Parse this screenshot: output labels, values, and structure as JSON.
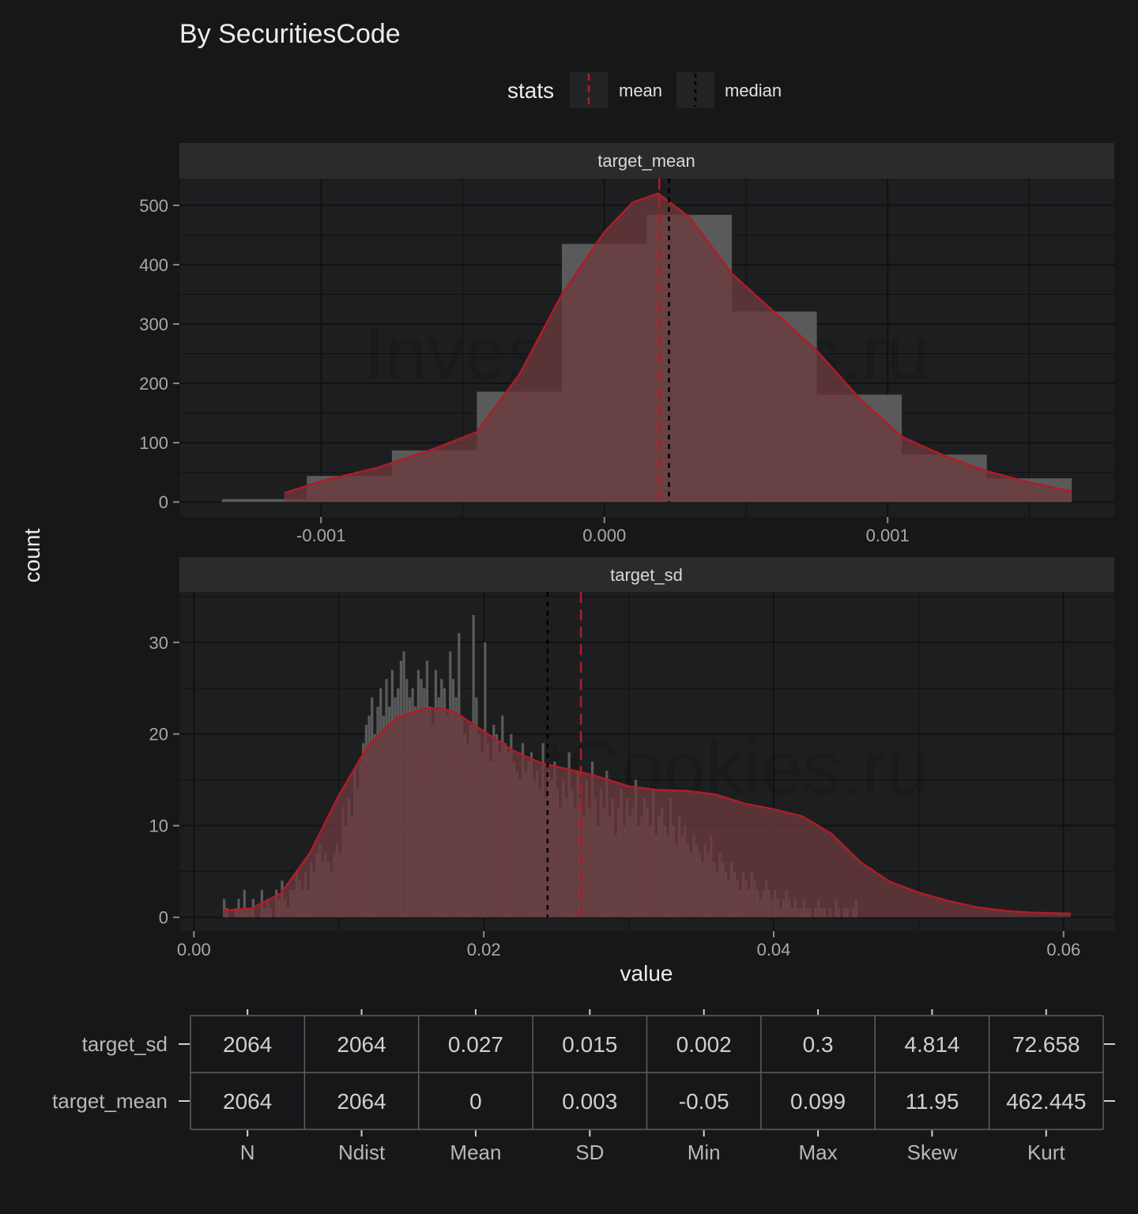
{
  "title": "By SecuritiesCode",
  "watermark": "InvestCookies.ru",
  "legend": {
    "title": "stats",
    "items": [
      {
        "label": "mean",
        "color": "#b01c27"
      },
      {
        "label": "median",
        "color": "#000000"
      }
    ]
  },
  "colors": {
    "background": "#161719",
    "panel": "#1d1e20",
    "strip": "#2a2b2d",
    "histogram_bar": "#5a5a5a",
    "density_fill": "#6b3a3e",
    "density_line": "#b01c27",
    "median_line": "#000000"
  },
  "chart_data": [
    {
      "type": "bar",
      "panel": "target_mean",
      "histogram": true,
      "xlim": [
        -0.0015,
        0.0018
      ],
      "ylim": [
        -25,
        545
      ],
      "x_ticks": [
        -0.001,
        0.0,
        0.001
      ],
      "x_tick_labels": [
        "-0.001",
        "0.000",
        "0.001"
      ],
      "y_ticks": [
        0,
        100,
        200,
        300,
        400,
        500
      ],
      "y_tick_labels": [
        "0",
        "100",
        "200",
        "300",
        "400",
        "500"
      ],
      "bins": [
        {
          "x0": -0.00135,
          "x1": -0.00105,
          "count": 5
        },
        {
          "x0": -0.00105,
          "x1": -0.00075,
          "count": 44
        },
        {
          "x0": -0.00075,
          "x1": -0.00045,
          "count": 87
        },
        {
          "x0": -0.00045,
          "x1": -0.00015,
          "count": 186
        },
        {
          "x0": -0.00015,
          "x1": 0.00015,
          "count": 435
        },
        {
          "x0": 0.00015,
          "x1": 0.00045,
          "count": 484
        },
        {
          "x0": 0.00045,
          "x1": 0.00075,
          "count": 321
        },
        {
          "x0": 0.00075,
          "x1": 0.00105,
          "count": 181
        },
        {
          "x0": 0.00105,
          "x1": 0.00135,
          "count": 80
        },
        {
          "x0": 0.00135,
          "x1": 0.00165,
          "count": 40
        }
      ],
      "density": {
        "x": [
          -0.00113,
          -0.001,
          -0.0008,
          -0.0006,
          -0.00045,
          -0.0003,
          -0.00015,
          0.0,
          0.0001,
          0.00019,
          0.0003,
          0.00045,
          0.0006,
          0.00075,
          0.0009,
          0.00105,
          0.0012,
          0.00135,
          0.0015,
          0.00165
        ],
        "y": [
          15,
          35,
          58,
          90,
          118,
          215,
          350,
          455,
          505,
          520,
          480,
          385,
          320,
          255,
          175,
          110,
          78,
          52,
          33,
          18
        ]
      },
      "mean": 0.000194,
      "median": 0.000228
    },
    {
      "type": "bar",
      "panel": "target_sd",
      "histogram": true,
      "xlim": [
        -0.001,
        0.0635
      ],
      "ylim": [
        -1.5,
        35.5
      ],
      "x_ticks": [
        0.0,
        0.02,
        0.04,
        0.06
      ],
      "x_tick_labels": [
        "0.00",
        "0.02",
        "0.04",
        "0.06"
      ],
      "y_ticks": [
        0,
        10,
        20,
        30
      ],
      "y_tick_labels": [
        "0",
        "10",
        "20",
        "30"
      ],
      "bin_start": 0.002,
      "bin_width": 0.0002,
      "counts": [
        2,
        1,
        0,
        0,
        1,
        2,
        1,
        3,
        1,
        1,
        2,
        0,
        0,
        3,
        1,
        2,
        1,
        0,
        3,
        2,
        4,
        2,
        1,
        3,
        3,
        5,
        4,
        3,
        5,
        3,
        6,
        5,
        7,
        8,
        6,
        7,
        6,
        5,
        7,
        8,
        7,
        12,
        10,
        13,
        11,
        16,
        14,
        17,
        19,
        21,
        22,
        24,
        20,
        23,
        25,
        22,
        26,
        23,
        27,
        24,
        25,
        28,
        29,
        26,
        24,
        25,
        23,
        27,
        26,
        25,
        28,
        23,
        21,
        27,
        24,
        26,
        25,
        22,
        29,
        26,
        24,
        31,
        22,
        20,
        19,
        21,
        33,
        24,
        20,
        18,
        30,
        19,
        17,
        21,
        20,
        18,
        22,
        19,
        18,
        20,
        17,
        16,
        15,
        19,
        16,
        17,
        18,
        15,
        16,
        14,
        19,
        13,
        16,
        15,
        17,
        14,
        12,
        15,
        13,
        18,
        14,
        12,
        16,
        13,
        11,
        15,
        12,
        17,
        13,
        10,
        14,
        12,
        16,
        11,
        13,
        9,
        12,
        14,
        10,
        13,
        11,
        12,
        15,
        10,
        11,
        13,
        12,
        10,
        14,
        9,
        11,
        12,
        10,
        9,
        13,
        10,
        8,
        11,
        9,
        10,
        8,
        7,
        9,
        8,
        7,
        6,
        8,
        7,
        9,
        6,
        5,
        7,
        6,
        5,
        4,
        6,
        5,
        4,
        3,
        5,
        4,
        3,
        5,
        4,
        3,
        2,
        3,
        4,
        3,
        2,
        3,
        2,
        1,
        2,
        3,
        2,
        1,
        2,
        1,
        1,
        2,
        1,
        1,
        0,
        1,
        2,
        1,
        1,
        0,
        1,
        0,
        2,
        1,
        0,
        1,
        1,
        0,
        1,
        2,
        0
      ],
      "density": {
        "x": [
          0.002,
          0.004,
          0.006,
          0.008,
          0.01,
          0.012,
          0.014,
          0.016,
          0.017,
          0.018,
          0.02,
          0.022,
          0.024,
          0.026,
          0.028,
          0.03,
          0.032,
          0.034,
          0.036,
          0.038,
          0.04,
          0.042,
          0.044,
          0.046,
          0.048,
          0.05,
          0.052,
          0.054,
          0.056,
          0.058,
          0.0605
        ],
        "y": [
          0.7,
          1.0,
          2.6,
          7.0,
          13.3,
          18.7,
          21.8,
          22.8,
          22.8,
          22.4,
          20.3,
          18.2,
          16.8,
          16.1,
          15.3,
          14.3,
          13.9,
          13.8,
          13.4,
          12.4,
          11.8,
          11.0,
          9.1,
          6.0,
          3.9,
          2.7,
          1.8,
          1.1,
          0.7,
          0.5,
          0.4
        ]
      },
      "mean": 0.0267,
      "median": 0.0244
    }
  ],
  "strip_labels": [
    "target_mean",
    "target_sd"
  ],
  "xlabel": "value",
  "ylabel": "count",
  "stats_table": {
    "columns": [
      "N",
      "Ndist",
      "Mean",
      "SD",
      "Min",
      "Max",
      "Skew",
      "Kurt"
    ],
    "rows": [
      {
        "label": "target_sd",
        "values": [
          "2064",
          "2064",
          "0.027",
          "0.015",
          "0.002",
          "0.3",
          "4.814",
          "72.658"
        ]
      },
      {
        "label": "target_mean",
        "values": [
          "2064",
          "2064",
          "0",
          "0.003",
          "-0.05",
          "0.099",
          "11.95",
          "462.445"
        ]
      }
    ]
  }
}
